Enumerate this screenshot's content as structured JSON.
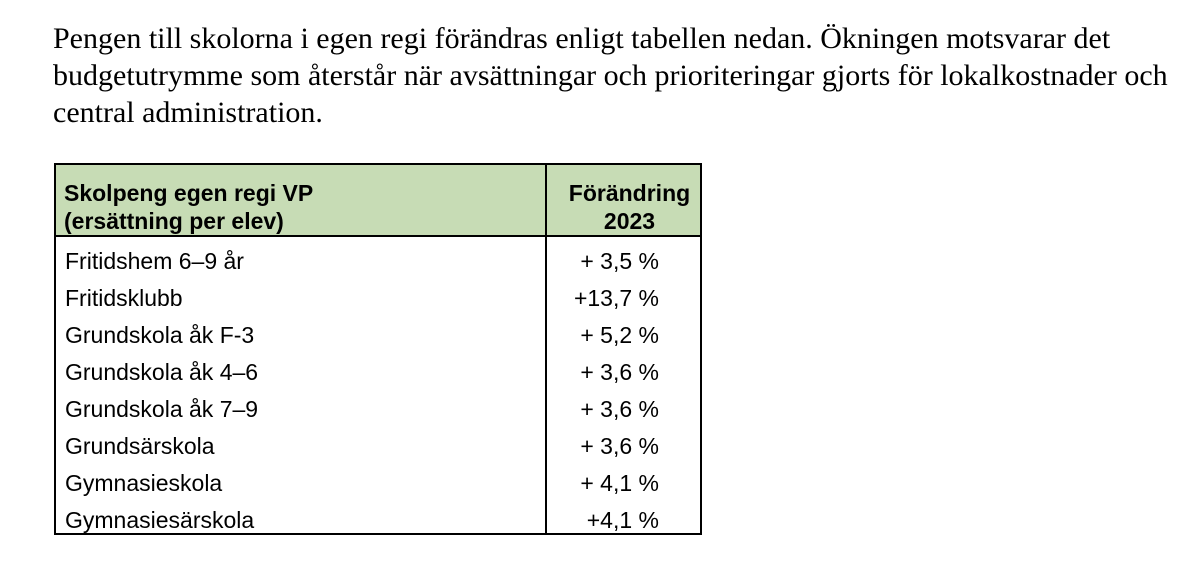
{
  "colors": {
    "header_green": "#c7dcb5",
    "border": "#000000",
    "text": "#000000",
    "page_background": "#ffffff"
  },
  "paragraph": {
    "lines": [
      "Pengen till skolorna i egen regi förändras enligt tabellen nedan. Ökningen motsvarar det",
      "budgetutrymme som återstår när avsättningar och prioriteringar gjorts för lokalkostnader och",
      "central administration."
    ]
  },
  "table": {
    "header": {
      "col1_line1": "Skolpeng egen regi VP",
      "col1_line2": "(ersättning per elev)",
      "col2_line1": "Förändring",
      "col2_line2": "2023"
    },
    "rows": [
      {
        "category": "Fritidshem 6–9 år",
        "change": "+ 3,5 %"
      },
      {
        "category": "Fritidsklubb",
        "change": "+13,7 %"
      },
      {
        "category": "Grundskola åk F-3",
        "change": "+ 5,2 %"
      },
      {
        "category": "Grundskola åk 4–6",
        "change": "+ 3,6 %"
      },
      {
        "category": "Grundskola åk 7–9",
        "change": "+ 3,6 %"
      },
      {
        "category": "Grundsärskola",
        "change": "+ 3,6 %"
      },
      {
        "category": "Gymnasieskola",
        "change": "+ 4,1 %"
      },
      {
        "category": "Gymnasiesärskola",
        "change": "+4,1 %"
      }
    ]
  }
}
